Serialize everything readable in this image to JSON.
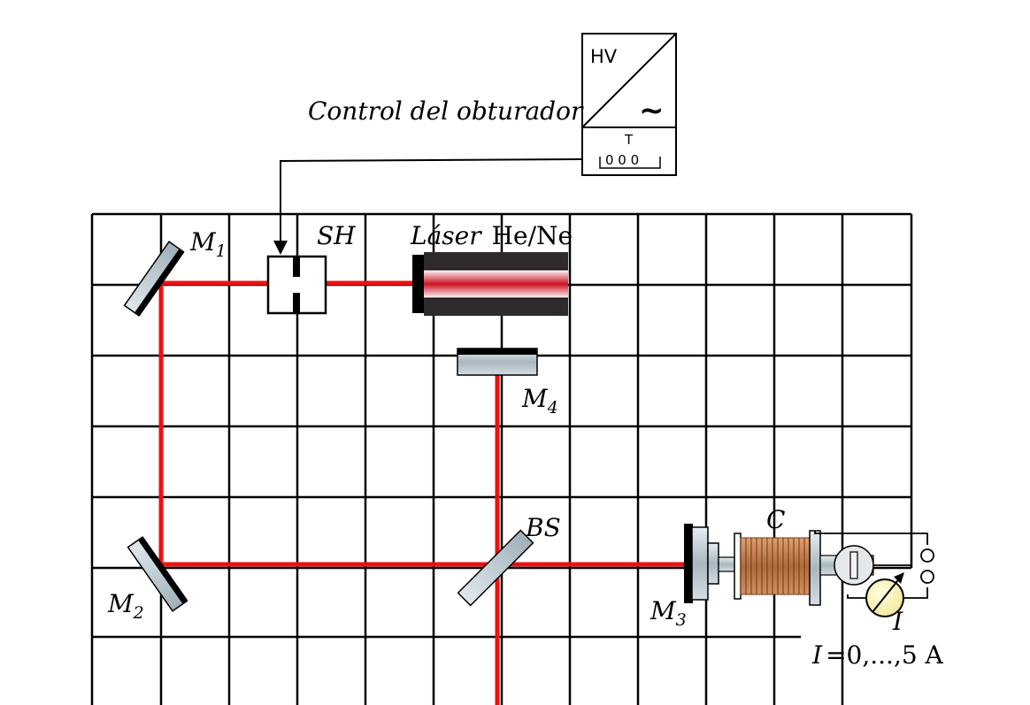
{
  "shutter_control_label": "Control del obturador",
  "power_supply": {
    "hv_label": "HV",
    "ac_symbol": "~",
    "timer_label": "T",
    "timer_digits": "0 0 0"
  },
  "components": {
    "shutter": "SH",
    "laser": {
      "italic": "Láser",
      "gas": "He/Ne"
    },
    "beam_splitter": "BS",
    "coil": "C",
    "current_meter": "I",
    "mirror_m1": {
      "letter": "M",
      "index": "1"
    },
    "mirror_m2": {
      "letter": "M",
      "index": "2"
    },
    "mirror_m3": {
      "letter": "M",
      "index": "3"
    },
    "mirror_m4": {
      "letter": "M",
      "index": "4"
    }
  },
  "current_range": {
    "symbol": "I",
    "value": "=0,...,5 A"
  },
  "colors": {
    "beam": "#ee1111",
    "grid": "#000000",
    "coil": "#b06a3c"
  }
}
